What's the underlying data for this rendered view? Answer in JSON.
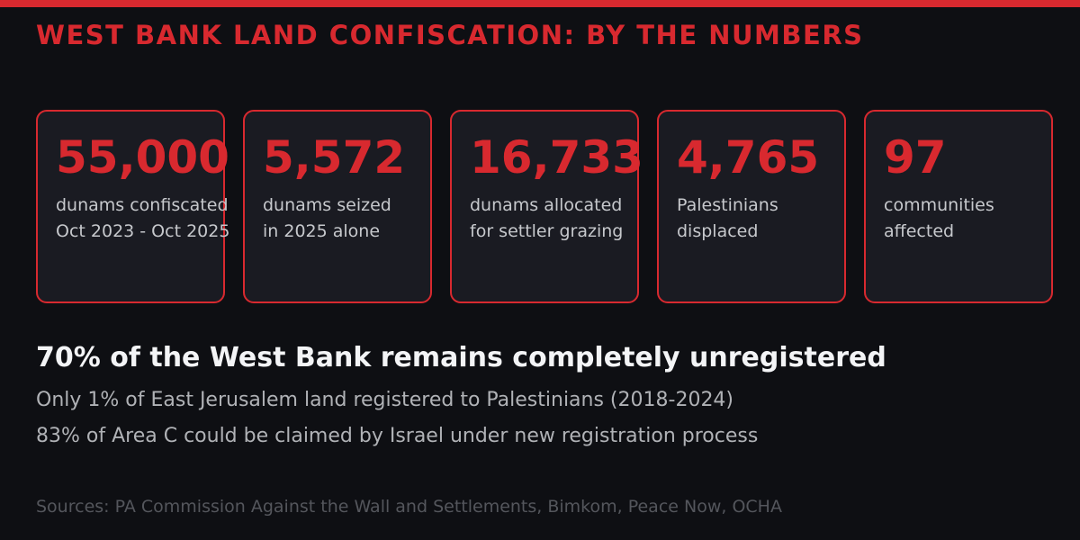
{
  "page": {
    "title": "WEST BANK LAND CONFISCATION: BY THE NUMBERS"
  },
  "colors": {
    "accent_red": "#d8292f",
    "page_background": "#0e0f13",
    "card_background": "#1a1b22",
    "card_label_gray": "#c6c8cc",
    "headline_white": "#f3f4f6",
    "subtext_gray": "#b0b2b6",
    "sources_gray": "#54565c"
  },
  "stats": [
    {
      "value": "55,000",
      "label_line1": "dunams confiscated",
      "label_line2": "Oct 2023 - Oct 2025"
    },
    {
      "value": "5,572",
      "label_line1": "dunams seized",
      "label_line2": "in 2025 alone"
    },
    {
      "value": "16,733",
      "label_line1": "dunams allocated",
      "label_line2": "for settler grazing"
    },
    {
      "value": "4,765",
      "label_line1": "Palestinians",
      "label_line2": "displaced"
    },
    {
      "value": "97",
      "label_line1": "communities",
      "label_line2": "affected"
    }
  ],
  "highlights": {
    "headline": "70% of the West Bank remains completely unregistered",
    "line1": "Only 1% of East Jerusalem land registered to Palestinians (2018-2024)",
    "line2": "83% of Area C could be claimed by Israel under new registration process"
  },
  "footer": {
    "sources": "Sources: PA Commission Against the Wall and Settlements, Bimkom, Peace Now, OCHA"
  },
  "chart_data": {
    "type": "table",
    "title": "WEST BANK LAND CONFISCATION: BY THE NUMBERS",
    "stats": [
      {
        "label": "dunams confiscated Oct 2023 - Oct 2025",
        "value": 55000
      },
      {
        "label": "dunams seized in 2025 alone",
        "value": 5572
      },
      {
        "label": "dunams allocated for settler grazing",
        "value": 16733
      },
      {
        "label": "Palestinians displaced",
        "value": 4765
      },
      {
        "label": "communities affected",
        "value": 97
      }
    ],
    "annotations": [
      "70% of the West Bank remains completely unregistered",
      "Only 1% of East Jerusalem land registered to Palestinians (2018-2024)",
      "83% of Area C could be claimed by Israel under new registration process"
    ],
    "sources": "PA Commission Against the Wall and Settlements, Bimkom, Peace Now, OCHA"
  }
}
